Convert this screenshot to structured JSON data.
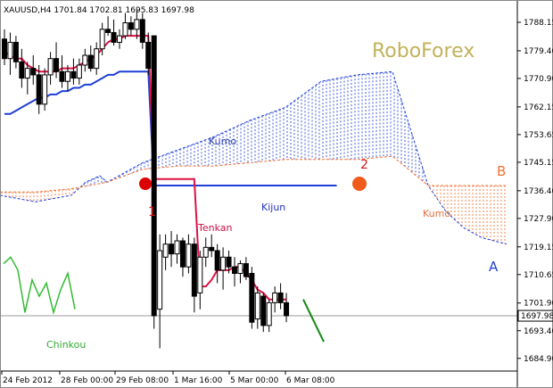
{
  "chart_data": {
    "type": "candlestick",
    "symbol_header": "XAUUSD,H4  1701.84 1702.81 1695.83 1697.98",
    "watermark": "RoboForex",
    "ylim": [
      1681.0,
      1795.0
    ],
    "y_ticks": [
      "1788.15",
      "1779.40",
      "1770.90",
      "1762.15",
      "1753.65",
      "1745.15",
      "1736.40",
      "1727.90",
      "1719.15",
      "1710.65",
      "1701.90",
      "1693.40",
      "1684.90"
    ],
    "x_ticks": [
      "24 Feb 2012",
      "28 Feb 00:00",
      "29 Feb 08:00",
      "1 Mar 16:00",
      "5 Mar 00:00",
      "6 Mar 08:00"
    ],
    "last_price": "1697.98",
    "labels": {
      "kumo_upper": "Kumo",
      "kumo_lower": "Kumo",
      "kijun": "Kijun",
      "tenkan": "Tenkan",
      "chinkou": "Chinkou",
      "span_b": "B",
      "span_a": "A",
      "marker1": "1",
      "marker2": "2"
    },
    "colors": {
      "tenkan": "#dd1144",
      "kijun": "#1f3fd6",
      "chinkou": "#33bb33",
      "span_a": "#1f3fd6",
      "span_b": "#f07030",
      "marker": "#dd0000",
      "marker2": "#f05a1a",
      "forecast": "#118811",
      "watermark": "#c2b25a"
    },
    "candles": [
      [
        1783,
        1786,
        1775,
        1777
      ],
      [
        1777,
        1785,
        1772,
        1782
      ],
      [
        1782,
        1784,
        1774,
        1776
      ],
      [
        1776,
        1780,
        1768,
        1771
      ],
      [
        1771,
        1776,
        1766,
        1774
      ],
      [
        1774,
        1778,
        1769,
        1772
      ],
      [
        1772,
        1775,
        1760,
        1763
      ],
      [
        1763,
        1774,
        1761,
        1772
      ],
      [
        1772,
        1779,
        1769,
        1777
      ],
      [
        1777,
        1782,
        1771,
        1773
      ],
      [
        1773,
        1778,
        1768,
        1770
      ],
      [
        1770,
        1775,
        1767,
        1773
      ],
      [
        1773,
        1777,
        1769,
        1771
      ],
      [
        1771,
        1777,
        1769,
        1775
      ],
      [
        1775,
        1780,
        1773,
        1778
      ],
      [
        1778,
        1781,
        1773,
        1774
      ],
      [
        1774,
        1782,
        1772,
        1780
      ],
      [
        1780,
        1788,
        1778,
        1786
      ],
      [
        1786,
        1790,
        1784,
        1785
      ],
      [
        1785,
        1789,
        1781,
        1782
      ],
      [
        1782,
        1786,
        1780,
        1784
      ],
      [
        1784,
        1791,
        1783,
        1788
      ],
      [
        1788,
        1790,
        1784,
        1786
      ],
      [
        1786,
        1792,
        1783,
        1789
      ],
      [
        1789,
        1791,
        1780,
        1782
      ],
      [
        1782,
        1785,
        1772,
        1774
      ],
      [
        1784,
        1784,
        1694,
        1698
      ],
      [
        1700,
        1723,
        1688,
        1718
      ],
      [
        1716,
        1723,
        1712,
        1720
      ],
      [
        1720,
        1724,
        1713,
        1717
      ],
      [
        1717,
        1723,
        1714,
        1721
      ],
      [
        1721,
        1722,
        1710,
        1713
      ],
      [
        1713,
        1723,
        1711,
        1720
      ],
      [
        1720,
        1722,
        1699,
        1704
      ],
      [
        1705,
        1718,
        1700,
        1716
      ],
      [
        1716,
        1722,
        1713,
        1719
      ],
      [
        1719,
        1723,
        1716,
        1718
      ],
      [
        1718,
        1720,
        1708,
        1712
      ],
      [
        1712,
        1719,
        1706,
        1716
      ],
      [
        1716,
        1718,
        1711,
        1713
      ],
      [
        1713,
        1716,
        1707,
        1711
      ],
      [
        1711,
        1715,
        1708,
        1714
      ],
      [
        1714,
        1716,
        1709,
        1710
      ],
      [
        1711,
        1713,
        1694,
        1696
      ],
      [
        1697,
        1707,
        1694,
        1705
      ],
      [
        1704,
        1705,
        1693,
        1695
      ],
      [
        1695,
        1703,
        1693,
        1702
      ],
      [
        1702,
        1707,
        1699,
        1705
      ],
      [
        1705,
        1708,
        1700,
        1702
      ],
      [
        1702,
        1705,
        1696,
        1698
      ]
    ],
    "tenkan": [
      1779,
      1778,
      1777,
      1777,
      1775,
      1774,
      1773,
      1773,
      1773,
      1773,
      1774,
      1774,
      1774,
      1775,
      1776,
      1777,
      1778,
      1780,
      1782,
      1783,
      1783,
      1784,
      1784,
      1784,
      1784,
      1784,
      1740,
      1740,
      1740,
      1740,
      1740,
      1740,
      1740,
      1740,
      1707,
      1707,
      1709,
      1712,
      1712,
      1712,
      1713,
      1713,
      1711,
      1709,
      1706,
      1705,
      1703,
      1703,
      1703,
      1703
    ],
    "kijun": [
      1760,
      1760,
      1761,
      1762,
      1763,
      1764,
      1765,
      1765,
      1766,
      1766,
      1767,
      1767,
      1768,
      1768,
      1769,
      1769,
      1770,
      1771,
      1772,
      1772,
      1773,
      1773,
      1773,
      1773,
      1773,
      1773,
      1738,
      1738,
      1738,
      1738,
      1738,
      1738,
      1738,
      1738,
      1738,
      1738,
      1738,
      1738,
      1738,
      1738,
      1738,
      1738,
      1738,
      1738,
      1738,
      1738,
      1738,
      1738,
      1738,
      1738
    ],
    "span_a": [
      [
        0,
        1735
      ],
      [
        10,
        1733
      ],
      [
        20,
        1735
      ],
      [
        24,
        1739
      ],
      [
        28,
        1741
      ],
      [
        30,
        1739
      ],
      [
        40,
        1745
      ],
      [
        60,
        1753
      ],
      [
        70,
        1758
      ],
      [
        80,
        1762
      ],
      [
        90,
        1770
      ],
      [
        100,
        1772
      ],
      [
        110,
        1773
      ],
      [
        120,
        1738
      ],
      [
        125,
        1730
      ],
      [
        130,
        1725
      ],
      [
        135,
        1722
      ],
      [
        142,
        1720
      ]
    ],
    "span_b": [
      [
        0,
        1736
      ],
      [
        10,
        1736
      ],
      [
        20,
        1737
      ],
      [
        30,
        1739
      ],
      [
        40,
        1743
      ],
      [
        50,
        1744
      ],
      [
        60,
        1744
      ],
      [
        70,
        1745
      ],
      [
        80,
        1746
      ],
      [
        90,
        1746
      ],
      [
        100,
        1746
      ],
      [
        110,
        1747
      ],
      [
        120,
        1738
      ],
      [
        125,
        1738
      ],
      [
        130,
        1738
      ],
      [
        135,
        1738
      ],
      [
        142,
        1738
      ]
    ],
    "chinkou": [
      1714,
      1716,
      1712,
      1699,
      1709,
      1704,
      1708,
      1699,
      1706,
      1711,
      1700
    ],
    "forecast_line": [
      [
        1703
      ],
      [
        1690
      ]
    ]
  }
}
